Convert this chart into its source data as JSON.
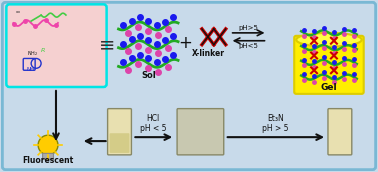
{
  "bg_color": "#c8daea",
  "outer_border_color": "#7ab8d4",
  "panel_tl_bg": "#f5d0d0",
  "panel_tl_border": "#00e5e5",
  "title": "",
  "labels": {
    "sol": "Sol",
    "xlinker": "X-linker",
    "gel": "Gel",
    "fluorescent": "Fluorescent",
    "hcl": "HCl\npH < 5",
    "et3n": "Et₃N\npH > 5",
    "ph_gt5": "pH>5",
    "ph_lt5": "pH<5"
  },
  "colors": {
    "green_chain": "#22aa22",
    "blue_dot": "#1a1aee",
    "pink_dot": "#dd44aa",
    "red_xlinker": "#dd2222",
    "black_xlinker": "#111111",
    "yellow_gel": "#ffee00",
    "gel_border": "#ddcc00",
    "bulb_yellow": "#ffcc00",
    "bulb_outline": "#888800",
    "arrow_color": "#111111",
    "text_color": "#111111",
    "polymer_pink": "#ee44aa",
    "polymer_green": "#44cc44",
    "polymer_blue": "#2233cc"
  }
}
